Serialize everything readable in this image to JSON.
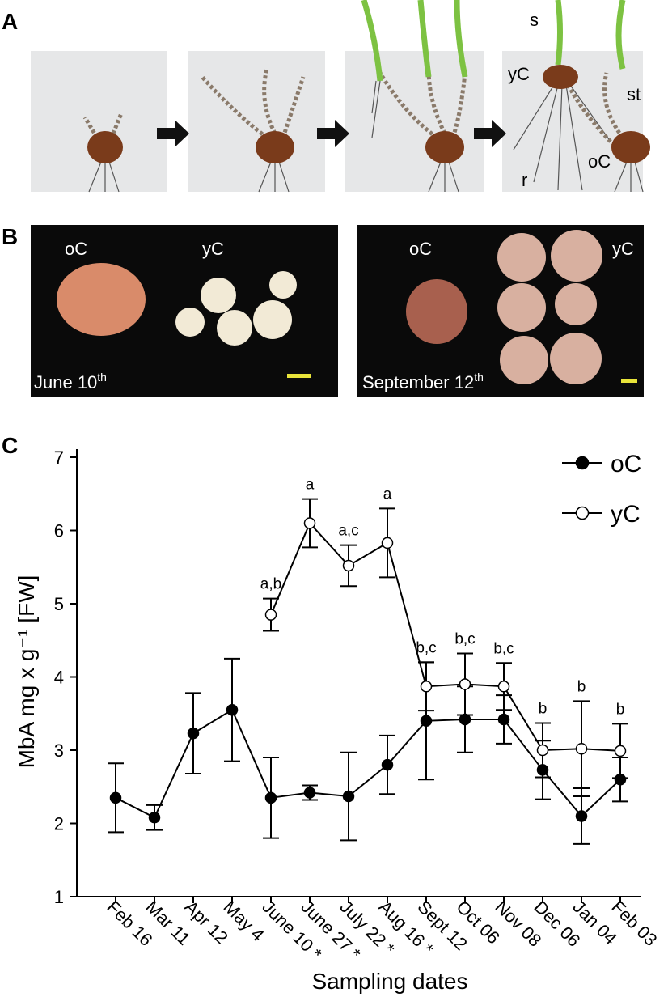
{
  "panels": {
    "A": {
      "label": "A",
      "annotations": [
        "s",
        "yC",
        "st",
        "r",
        "oC"
      ]
    },
    "B": {
      "label": "B",
      "photos": [
        {
          "labels": [
            "oC",
            "yC"
          ],
          "date": "June 10",
          "date_suffix": "th"
        },
        {
          "labels": [
            "oC",
            "yC"
          ],
          "date": "September 12",
          "date_suffix": "th"
        }
      ]
    }
  },
  "chart_data": {
    "type": "line",
    "panel_label": "C",
    "x_label": "Sampling dates",
    "y_label": "MbA mg x g⁻¹ [FW]",
    "categories": [
      "Feb 16",
      "Mar 11",
      "Apr 12",
      "May 4",
      "June 10 *",
      "June 27 *",
      "July 22 *",
      "Aug 16 *",
      "Sept 12",
      "Oct 06",
      "Nov 08",
      "Dec 06",
      "Jan 04",
      "Feb 03"
    ],
    "ylim": [
      1,
      7
    ],
    "yticks": [
      1,
      2,
      3,
      4,
      5,
      6,
      7
    ],
    "grid": false,
    "legend": "upper right",
    "series": [
      {
        "name": "oC",
        "color": "#000000",
        "marker_fill": "#000000",
        "values": [
          2.35,
          2.08,
          3.23,
          3.55,
          2.35,
          2.42,
          2.37,
          2.8,
          3.4,
          3.42,
          3.42,
          2.73,
          2.1,
          2.6
        ],
        "errors": [
          0.47,
          0.17,
          0.55,
          0.7,
          0.55,
          0.1,
          0.6,
          0.4,
          0.8,
          0.45,
          0.33,
          0.4,
          0.38,
          0.3
        ]
      },
      {
        "name": "yC",
        "color": "#000000",
        "marker_fill": "#ffffff",
        "values": [
          null,
          null,
          null,
          null,
          4.85,
          6.1,
          5.52,
          5.83,
          3.87,
          3.9,
          3.87,
          3.0,
          3.02,
          2.99
        ],
        "errors": [
          null,
          null,
          null,
          null,
          0.22,
          0.33,
          0.28,
          0.47,
          0.33,
          0.42,
          0.32,
          0.37,
          0.65,
          0.37
        ],
        "annotations": [
          null,
          null,
          null,
          null,
          "a,b",
          "a",
          "a,c",
          "a",
          "b,c",
          "b,c",
          "b,c",
          "b",
          "b",
          "b"
        ]
      }
    ]
  }
}
